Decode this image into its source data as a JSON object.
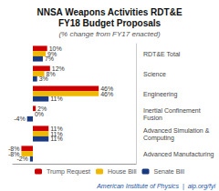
{
  "chart_data": {
    "type": "bar",
    "orientation": "horizontal",
    "title": "NNSA Weapons Activities RDT&E\nFY18 Budget Proposals",
    "subtitle": "(% change from FY17 enacted)",
    "categories": [
      "RDT&E Total",
      "Science",
      "Engineering",
      "Inertial Confinement Fusion",
      "Advanced Simulation & Computing",
      "Advanced Manufacturing"
    ],
    "series": [
      {
        "name": "Trump Request",
        "color": "#cc0000",
        "values": [
          10,
          12,
          46,
          2,
          11,
          -8
        ],
        "value_labels": [
          "10%",
          "12%",
          "46%",
          "2%",
          "11%",
          "-8%"
        ]
      },
      {
        "name": "House Bill",
        "color": "#f0b800",
        "values": [
          9,
          8,
          46,
          0,
          11,
          -8
        ],
        "value_labels": [
          "9%",
          "8%",
          "46%",
          "0%",
          "11%",
          "-8%"
        ]
      },
      {
        "name": "Senate Bill",
        "color": "#1a3a80",
        "values": [
          7,
          3,
          11,
          -4,
          11,
          -2
        ],
        "value_labels": [
          "7%",
          "3%",
          "11%",
          "-4%",
          "11%",
          "-2%"
        ]
      }
    ],
    "xlim": [
      -14,
      72
    ],
    "data_labels": true,
    "tick_labels": false,
    "grid": false,
    "legend": "bottom",
    "annotations": [
      "American Institute of Physics  |  aip.org/fyi"
    ]
  }
}
